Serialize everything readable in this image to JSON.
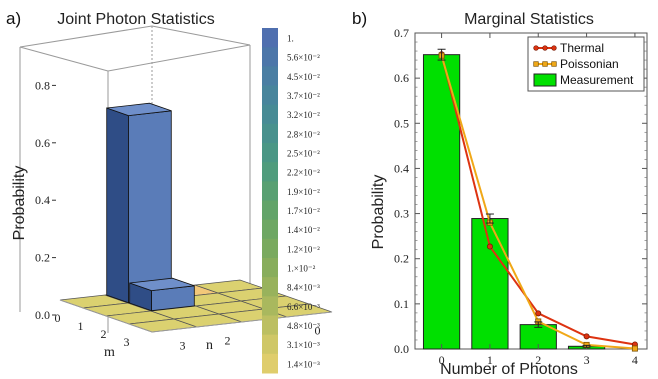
{
  "chart_data": [
    {
      "panel_label": "a)",
      "type": "bar3d",
      "title": "Joint Photon Statistics",
      "zlabel": "Probability",
      "xlabel": "m",
      "ylabel": "n",
      "zlim": [
        0,
        0.95
      ],
      "z_ticks": [
        "0.0",
        "0.2",
        "0.4",
        "0.6",
        "0.8"
      ],
      "m_ticks": [
        "0",
        "1",
        "2",
        "3"
      ],
      "n_ticks": [
        "0",
        "1",
        "2",
        "3"
      ],
      "values": [
        [
          0.652,
          0.0,
          0.002,
          0.0
        ],
        [
          0.07,
          0.01,
          0.0,
          0.0
        ],
        [
          0.0,
          0.012,
          0.0,
          0.0
        ],
        [
          0.0,
          0.0,
          0.0,
          0.0
        ]
      ],
      "colorbar_labels": [
        "1.",
        "5.6×10⁻²",
        "4.5×10⁻²",
        "3.7×10⁻²",
        "3.2×10⁻²",
        "2.8×10⁻²",
        "2.5×10⁻²",
        "2.2×10⁻²",
        "1.9×10⁻²",
        "1.7×10⁻²",
        "1.4×10⁻²",
        "1.2×10⁻²",
        "1.×10⁻²",
        "8.4×10⁻³",
        "6.6×10⁻³",
        "4.8×10⁻³",
        "3.1×10⁻³",
        "1.4×10⁻³"
      ],
      "colorbar_colors": [
        "#4f6faf",
        "#4c76a9",
        "#4a7ea3",
        "#48859c",
        "#478b95",
        "#48918d",
        "#4a9785",
        "#4f9c7c",
        "#58a072",
        "#62a469",
        "#6ea763",
        "#7aaa5f",
        "#88ad5c",
        "#98b25c",
        "#a9b85e",
        "#bcbf62",
        "#cfc767",
        "#dfcd6c"
      ],
      "colors": {
        "tall_bar": "#5b7db9",
        "small_bar": "#5b7db9",
        "floor": "#dbd170",
        "floor_green": "#a8b560",
        "floor_orange": "#f2c879",
        "box": "#9a9a9a"
      }
    },
    {
      "panel_label": "b)",
      "type": "bar+line",
      "title": "Marginal Statistics",
      "xlabel": "Number of Photons",
      "ylabel": "Probability",
      "categories": [
        "0",
        "1",
        "2",
        "3",
        "4"
      ],
      "xlim": [
        -0.55,
        4.25
      ],
      "ylim": [
        0,
        0.7
      ],
      "y_ticks": [
        "0.0",
        "0.1",
        "0.2",
        "0.3",
        "0.4",
        "0.5",
        "0.6",
        "0.7"
      ],
      "series": [
        {
          "name": "Thermal",
          "type": "line",
          "color": "#dd3311",
          "values": [
            0.653,
            0.227,
            0.079,
            0.028,
            0.01
          ]
        },
        {
          "name": "Poissonian",
          "type": "line",
          "color": "#f0a818",
          "values": [
            0.65,
            0.28,
            0.061,
            0.009,
            0.001
          ]
        },
        {
          "name": "Measurement",
          "type": "bar",
          "color": "#00e000",
          "values": [
            0.652,
            0.289,
            0.054,
            0.006,
            0.0
          ],
          "errors": [
            0.012,
            0.01,
            0.006,
            0.002,
            0.0
          ]
        }
      ],
      "legend_position": "top-right"
    }
  ]
}
